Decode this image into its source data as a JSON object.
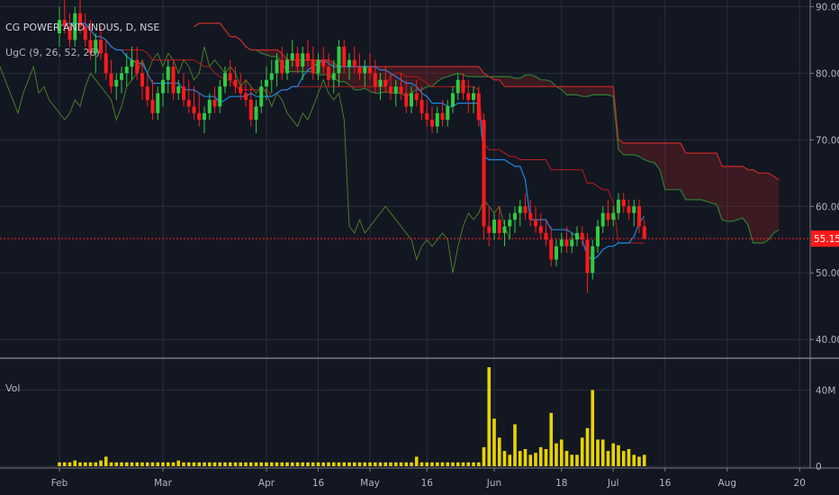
{
  "chart_data": {
    "type": "candlestick",
    "symbol_title": "CG POWER AND INDUS, D, NSE",
    "indicator_label": "UgC (9, 26, 52, 26)",
    "volume_label": "Vol",
    "last_price": 55.15,
    "y_ticks": [
      "90.00",
      "80.00",
      "70.00",
      "60.00",
      "50.00",
      "40.00"
    ],
    "y_range": [
      38,
      91
    ],
    "volume_ticks": [
      "40M",
      "0"
    ],
    "volume_max": 52,
    "x_ticks": [
      {
        "label": "Feb",
        "bar": 0
      },
      {
        "label": "Mar",
        "bar": 20
      },
      {
        "label": "Apr",
        "bar": 40
      },
      {
        "label": "16",
        "bar": 50
      },
      {
        "label": "May",
        "bar": 60
      },
      {
        "label": "16",
        "bar": 71
      },
      {
        "label": "Jun",
        "bar": 84
      },
      {
        "label": "18",
        "bar": 97
      },
      {
        "label": "Jul",
        "bar": 107
      },
      {
        "label": "16",
        "bar": 117
      },
      {
        "label": "Aug",
        "bar": 129
      },
      {
        "label": "20",
        "bar": 143
      }
    ],
    "ohlc": [
      [
        86,
        90,
        84,
        88
      ],
      [
        88,
        91,
        86,
        87
      ],
      [
        87,
        89,
        84,
        85
      ],
      [
        85,
        90,
        84,
        89
      ],
      [
        89,
        91,
        86,
        87
      ],
      [
        87,
        89,
        84,
        85
      ],
      [
        85,
        88,
        82,
        83
      ],
      [
        83,
        86,
        80,
        85
      ],
      [
        85,
        87,
        82,
        83
      ],
      [
        83,
        85,
        79,
        80
      ],
      [
        80,
        82,
        77,
        78
      ],
      [
        78,
        80,
        76,
        79
      ],
      [
        79,
        81,
        77,
        80
      ],
      [
        80,
        83,
        78,
        81
      ],
      [
        81,
        84,
        79,
        82
      ],
      [
        82,
        84,
        79,
        80
      ],
      [
        80,
        82,
        76,
        78
      ],
      [
        78,
        80,
        75,
        76
      ],
      [
        76,
        79,
        73,
        74
      ],
      [
        74,
        78,
        73,
        77
      ],
      [
        77,
        80,
        75,
        79
      ],
      [
        79,
        82,
        77,
        81
      ],
      [
        81,
        82,
        76,
        77
      ],
      [
        77,
        79,
        76,
        78
      ],
      [
        78,
        80,
        75,
        76
      ],
      [
        76,
        79,
        74,
        75
      ],
      [
        75,
        78,
        73,
        74
      ],
      [
        74,
        77,
        72,
        73
      ],
      [
        73,
        75,
        71,
        74
      ],
      [
        74,
        77,
        73,
        76
      ],
      [
        76,
        78,
        74,
        75
      ],
      [
        75,
        79,
        74,
        78
      ],
      [
        78,
        81,
        77,
        80
      ],
      [
        80,
        82,
        78,
        79
      ],
      [
        79,
        81,
        77,
        78
      ],
      [
        78,
        80,
        76,
        77
      ],
      [
        77,
        79,
        75,
        76
      ],
      [
        76,
        78,
        72,
        73
      ],
      [
        73,
        76,
        71,
        75
      ],
      [
        75,
        79,
        74,
        78
      ],
      [
        78,
        81,
        76,
        79
      ],
      [
        79,
        82,
        77,
        80
      ],
      [
        80,
        83,
        78,
        82
      ],
      [
        82,
        84,
        79,
        80
      ],
      [
        80,
        83,
        79,
        82
      ],
      [
        82,
        85,
        81,
        83
      ],
      [
        83,
        84,
        80,
        81
      ],
      [
        81,
        84,
        79,
        83
      ],
      [
        83,
        85,
        81,
        82
      ],
      [
        82,
        84,
        79,
        80
      ],
      [
        80,
        83,
        79,
        82
      ],
      [
        82,
        84,
        80,
        81
      ],
      [
        81,
        83,
        78,
        79
      ],
      [
        79,
        82,
        77,
        80
      ],
      [
        80,
        85,
        78,
        84
      ],
      [
        84,
        85,
        80,
        81
      ],
      [
        81,
        83,
        79,
        82
      ],
      [
        82,
        84,
        80,
        81
      ],
      [
        81,
        83,
        79,
        80
      ],
      [
        80,
        82,
        78,
        81
      ],
      [
        81,
        83,
        79,
        80
      ],
      [
        80,
        82,
        77,
        78
      ],
      [
        78,
        80,
        76,
        79
      ],
      [
        79,
        81,
        77,
        78
      ],
      [
        78,
        80,
        76,
        77
      ],
      [
        77,
        79,
        75,
        78
      ],
      [
        78,
        80,
        76,
        77
      ],
      [
        77,
        79,
        74,
        75
      ],
      [
        75,
        78,
        74,
        77
      ],
      [
        77,
        79,
        75,
        76
      ],
      [
        76,
        78,
        73,
        74
      ],
      [
        74,
        76,
        72,
        73
      ],
      [
        73,
        75,
        71,
        72
      ],
      [
        72,
        75,
        71,
        74
      ],
      [
        74,
        76,
        72,
        73
      ],
      [
        73,
        76,
        72,
        75
      ],
      [
        75,
        78,
        74,
        77
      ],
      [
        77,
        80,
        76,
        79
      ],
      [
        79,
        80,
        76,
        77
      ],
      [
        77,
        79,
        74,
        76
      ],
      [
        76,
        78,
        74,
        77
      ],
      [
        77,
        78,
        72,
        73
      ],
      [
        73,
        74,
        55,
        57
      ],
      [
        57,
        60,
        54,
        56
      ],
      [
        56,
        59,
        55,
        58
      ],
      [
        58,
        60,
        55,
        56
      ],
      [
        56,
        58,
        54,
        57
      ],
      [
        57,
        59,
        55,
        58
      ],
      [
        58,
        60,
        56,
        59
      ],
      [
        59,
        61,
        57,
        60
      ],
      [
        60,
        62,
        58,
        59
      ],
      [
        59,
        61,
        57,
        58
      ],
      [
        58,
        60,
        56,
        57
      ],
      [
        57,
        59,
        55,
        56
      ],
      [
        56,
        58,
        54,
        55
      ],
      [
        55,
        57,
        51,
        52
      ],
      [
        52,
        55,
        51,
        54
      ],
      [
        54,
        56,
        53,
        55
      ],
      [
        55,
        57,
        53,
        54
      ],
      [
        54,
        56,
        53,
        55
      ],
      [
        55,
        57,
        54,
        56
      ],
      [
        56,
        57,
        54,
        55
      ],
      [
        55,
        56,
        47,
        50
      ],
      [
        50,
        55,
        49,
        54
      ],
      [
        54,
        58,
        53,
        57
      ],
      [
        57,
        60,
        56,
        59
      ],
      [
        59,
        61,
        57,
        58
      ],
      [
        58,
        60,
        57,
        59
      ],
      [
        59,
        62,
        58,
        61
      ],
      [
        61,
        62,
        59,
        60
      ],
      [
        60,
        61,
        58,
        59
      ],
      [
        59,
        61,
        57,
        60
      ],
      [
        60,
        61,
        56,
        57
      ],
      [
        57,
        58,
        55,
        55.15
      ]
    ],
    "volume": [
      2,
      2,
      2,
      3,
      2,
      2,
      2,
      2,
      3,
      5,
      2,
      2,
      2,
      2,
      2,
      2,
      2,
      2,
      2,
      2,
      2,
      2,
      2,
      3,
      2,
      2,
      2,
      2,
      2,
      2,
      2,
      2,
      2,
      2,
      2,
      2,
      2,
      2,
      2,
      2,
      2,
      2,
      2,
      2,
      2,
      2,
      2,
      2,
      2,
      2,
      2,
      2,
      2,
      2,
      2,
      2,
      2,
      2,
      2,
      2,
      2,
      2,
      2,
      2,
      2,
      2,
      2,
      2,
      2,
      5,
      2,
      2,
      2,
      2,
      2,
      2,
      2,
      2,
      2,
      2,
      2,
      2,
      10,
      52,
      25,
      15,
      8,
      6,
      22,
      8,
      9,
      6,
      7,
      10,
      9,
      28,
      12,
      14,
      8,
      6,
      6,
      15,
      20,
      40,
      14,
      14,
      8,
      12,
      11,
      8,
      9,
      6,
      5,
      6
    ]
  }
}
